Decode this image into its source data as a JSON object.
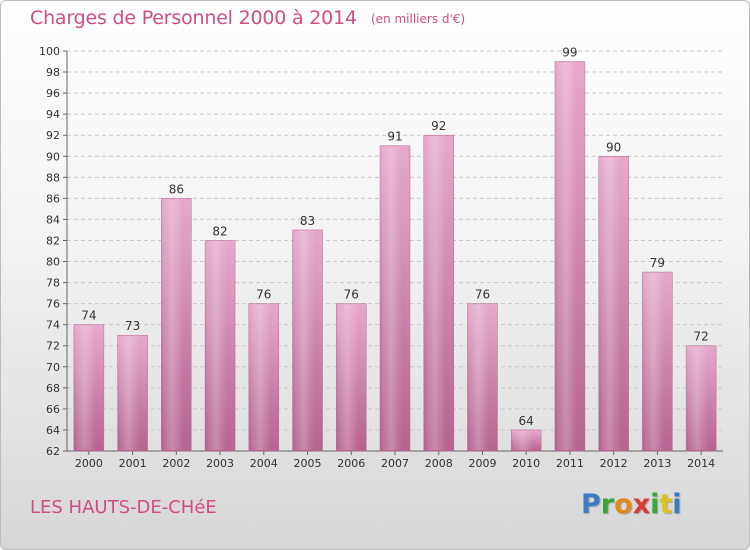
{
  "chart_data": {
    "type": "bar",
    "title": "Charges de Personnel 2000 à 2014",
    "subtitle": "(en milliers d'€)",
    "categories": [
      "2000",
      "2001",
      "2002",
      "2003",
      "2004",
      "2005",
      "2006",
      "2007",
      "2008",
      "2009",
      "2010",
      "2011",
      "2012",
      "2013",
      "2014"
    ],
    "values": [
      74,
      73,
      86,
      82,
      76,
      83,
      76,
      91,
      92,
      76,
      64,
      99,
      90,
      79,
      72
    ],
    "ylim": [
      62,
      100
    ],
    "yticks": [
      62,
      64,
      66,
      68,
      70,
      72,
      74,
      76,
      78,
      80,
      82,
      84,
      86,
      88,
      90,
      92,
      94,
      96,
      98,
      100
    ],
    "xlabel": "",
    "ylabel": "",
    "grid": true,
    "bar_color": "#d98fb8"
  },
  "footer": {
    "location": "LES HAUTS-DE-CHéE",
    "brand": "Proxiti"
  }
}
